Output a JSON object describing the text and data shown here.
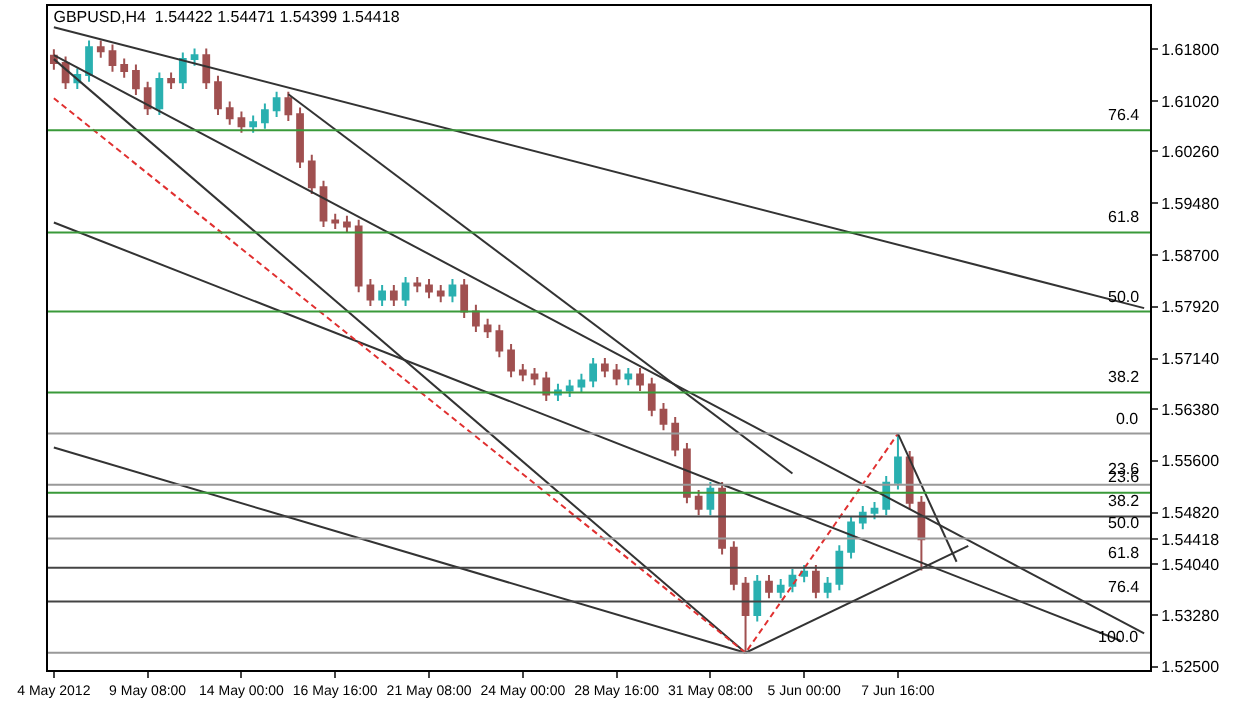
{
  "chart_data": {
    "type": "candlestick",
    "title": "GBPUSD,H4  1.54422 1.54471 1.54399 1.54418",
    "categories": [
      "4 May 2012",
      null,
      null,
      null,
      null,
      null,
      null,
      null,
      "9 May 08:00",
      null,
      null,
      null,
      null,
      null,
      null,
      null,
      "14 May 00:00",
      null,
      null,
      null,
      null,
      null,
      null,
      null,
      "16 May 16:00",
      null,
      null,
      null,
      null,
      null,
      null,
      null,
      "21 May 08:00",
      null,
      null,
      null,
      null,
      null,
      null,
      null,
      "24 May 00:00",
      null,
      null,
      null,
      null,
      null,
      null,
      null,
      "28 May 16:00",
      null,
      null,
      null,
      null,
      null,
      null,
      null,
      "31 May 08:00",
      null,
      null,
      null,
      null,
      null,
      null,
      null,
      "5 Jun 00:00",
      null,
      null,
      null,
      null,
      null,
      null,
      null,
      "7 Jun 16:00",
      null,
      null,
      null,
      null,
      null,
      null,
      null,
      null,
      null,
      null,
      null,
      null,
      null,
      null,
      null,
      null,
      null,
      null,
      null,
      null,
      null
    ],
    "ohlc": [
      [
        1.617,
        1.618,
        1.6149,
        1.6159
      ],
      [
        1.6159,
        1.6169,
        1.612,
        1.613
      ],
      [
        1.613,
        1.6151,
        1.612,
        1.6141
      ],
      [
        1.6141,
        1.6193,
        1.6131,
        1.6183
      ],
      [
        1.6183,
        1.6193,
        1.6167,
        1.6177
      ],
      [
        1.6177,
        1.6187,
        1.6146,
        1.6156
      ],
      [
        1.6156,
        1.6166,
        1.6137,
        1.6147
      ],
      [
        1.6147,
        1.6157,
        1.6111,
        1.6121
      ],
      [
        1.6121,
        1.6131,
        1.6081,
        1.6091
      ],
      [
        1.6091,
        1.6145,
        1.6081,
        1.6135
      ],
      [
        1.6135,
        1.6145,
        1.612,
        1.613
      ],
      [
        1.613,
        1.6175,
        1.612,
        1.6165
      ],
      [
        1.6165,
        1.6181,
        1.6155,
        1.6171
      ],
      [
        1.6171,
        1.6181,
        1.612,
        1.613
      ],
      [
        1.613,
        1.614,
        1.6081,
        1.6091
      ],
      [
        1.6091,
        1.6101,
        1.6066,
        1.6076
      ],
      [
        1.6076,
        1.6086,
        1.6054,
        1.6064
      ],
      [
        1.6064,
        1.608,
        1.6054,
        1.607
      ],
      [
        1.607,
        1.6098,
        1.606,
        1.6088
      ],
      [
        1.6088,
        1.6116,
        1.6078,
        1.6106
      ],
      [
        1.6106,
        1.6116,
        1.6072,
        1.6082
      ],
      [
        1.6082,
        1.6092,
        1.6001,
        1.6011
      ],
      [
        1.6011,
        1.6021,
        1.5962,
        1.5972
      ],
      [
        1.5972,
        1.5982,
        1.5912,
        1.5922
      ],
      [
        1.5922,
        1.5932,
        1.5909,
        1.5919
      ],
      [
        1.5919,
        1.5929,
        1.5903,
        1.5913
      ],
      [
        1.5913,
        1.5923,
        1.5814,
        1.5824
      ],
      [
        1.5824,
        1.5834,
        1.5793,
        1.5803
      ],
      [
        1.5803,
        1.5825,
        1.5793,
        1.5815
      ],
      [
        1.5815,
        1.5825,
        1.5793,
        1.5803
      ],
      [
        1.5803,
        1.5837,
        1.5793,
        1.5827
      ],
      [
        1.5827,
        1.5837,
        1.5814,
        1.5824
      ],
      [
        1.5824,
        1.5834,
        1.5805,
        1.5815
      ],
      [
        1.5815,
        1.5825,
        1.5799,
        1.5809
      ],
      [
        1.5809,
        1.5834,
        1.5799,
        1.5824
      ],
      [
        1.5824,
        1.5834,
        1.5775,
        1.5785
      ],
      [
        1.5785,
        1.5795,
        1.5754,
        1.5764
      ],
      [
        1.5764,
        1.5774,
        1.5745,
        1.5755
      ],
      [
        1.5755,
        1.5765,
        1.5716,
        1.5726
      ],
      [
        1.5726,
        1.5736,
        1.5686,
        1.5696
      ],
      [
        1.5696,
        1.5706,
        1.568,
        1.569
      ],
      [
        1.569,
        1.57,
        1.5674,
        1.5684
      ],
      [
        1.5684,
        1.5694,
        1.565,
        1.566
      ],
      [
        1.566,
        1.5676,
        1.565,
        1.5666
      ],
      [
        1.5666,
        1.5682,
        1.5656,
        1.5672
      ],
      [
        1.5672,
        1.5691,
        1.5662,
        1.5681
      ],
      [
        1.5681,
        1.5715,
        1.5671,
        1.5705
      ],
      [
        1.5705,
        1.5715,
        1.5686,
        1.5696
      ],
      [
        1.5696,
        1.5706,
        1.5674,
        1.5684
      ],
      [
        1.5684,
        1.57,
        1.5674,
        1.569
      ],
      [
        1.569,
        1.57,
        1.5665,
        1.5675
      ],
      [
        1.5675,
        1.5685,
        1.5627,
        1.5637
      ],
      [
        1.5637,
        1.5647,
        1.5606,
        1.5616
      ],
      [
        1.5616,
        1.5626,
        1.5567,
        1.5577
      ],
      [
        1.5577,
        1.5587,
        1.5496,
        1.5506
      ],
      [
        1.5506,
        1.5516,
        1.5478,
        1.5488
      ],
      [
        1.5488,
        1.5528,
        1.5478,
        1.5518
      ],
      [
        1.5518,
        1.5528,
        1.5419,
        1.5429
      ],
      [
        1.5429,
        1.5439,
        1.5365,
        1.5375
      ],
      [
        1.5375,
        1.5385,
        1.5271,
        1.5328
      ],
      [
        1.5328,
        1.5388,
        1.5318,
        1.5378
      ],
      [
        1.5378,
        1.5388,
        1.5353,
        1.5363
      ],
      [
        1.5363,
        1.5382,
        1.5353,
        1.5372
      ],
      [
        1.5372,
        1.5397,
        1.5362,
        1.5387
      ],
      [
        1.5387,
        1.5403,
        1.5377,
        1.5393
      ],
      [
        1.5393,
        1.5403,
        1.5353,
        1.5363
      ],
      [
        1.5363,
        1.5385,
        1.5353,
        1.5375
      ],
      [
        1.5375,
        1.5433,
        1.5365,
        1.5423
      ],
      [
        1.5423,
        1.5477,
        1.5413,
        1.5467
      ],
      [
        1.5467,
        1.5492,
        1.5457,
        1.5482
      ],
      [
        1.5482,
        1.5498,
        1.5472,
        1.5488
      ],
      [
        1.5488,
        1.5537,
        1.5478,
        1.5527
      ],
      [
        1.5527,
        1.5601,
        1.5517,
        1.5565
      ],
      [
        1.5565,
        1.5575,
        1.5487,
        1.5497
      ],
      [
        1.5497,
        1.5507,
        1.5395,
        1.5442
      ],
      null,
      null,
      null,
      null,
      null,
      null,
      null,
      null,
      null,
      null,
      null,
      null,
      null,
      null,
      null,
      null,
      null,
      null,
      null
    ],
    "colors": [
      "#a05050",
      "#a05050",
      "#2ab0b0",
      "#2ab0b0",
      "#a05050",
      "#a05050",
      "#a05050",
      "#a05050",
      "#a05050",
      "#2ab0b0",
      "#a05050",
      "#2ab0b0",
      "#2ab0b0",
      "#a05050",
      "#a05050",
      "#a05050",
      "#a05050",
      "#2ab0b0",
      "#2ab0b0",
      "#2ab0b0",
      "#a05050",
      "#a05050",
      "#a05050",
      "#a05050",
      "#a05050",
      "#a05050",
      "#a05050",
      "#a05050",
      "#2ab0b0",
      "#a05050",
      "#2ab0b0",
      "#a05050",
      "#a05050",
      "#a05050",
      "#2ab0b0",
      "#a05050",
      "#a05050",
      "#a05050",
      "#a05050",
      "#a05050",
      "#a05050",
      "#a05050",
      "#a05050",
      "#2ab0b0",
      "#2ab0b0",
      "#2ab0b0",
      "#2ab0b0",
      "#a05050",
      "#a05050",
      "#2ab0b0",
      "#a05050",
      "#a05050",
      "#a05050",
      "#a05050",
      "#a05050",
      "#a05050",
      "#2ab0b0",
      "#a05050",
      "#a05050",
      "#a05050",
      "#2ab0b0",
      "#a05050",
      "#2ab0b0",
      "#2ab0b0",
      "#2ab0b0",
      "#a05050",
      "#2ab0b0",
      "#2ab0b0",
      "#2ab0b0",
      "#2ab0b0",
      "#2ab0b0",
      "#2ab0b0",
      "#2ab0b0",
      "#a05050",
      "#a05050",
      null,
      null,
      null,
      null,
      null,
      null,
      null,
      null,
      null,
      null,
      null,
      null,
      null,
      null,
      null,
      null,
      null,
      null,
      null
    ],
    "series": [
      {
        "type": "line",
        "color": "#333333",
        "values": [
          1.6213,
          null,
          null,
          null,
          null,
          null,
          null,
          null,
          null,
          null,
          null,
          null,
          null,
          null,
          null,
          null,
          null,
          null,
          null,
          null,
          null,
          null,
          null,
          null,
          null,
          null,
          null,
          null,
          null,
          null,
          null,
          null,
          null,
          null,
          null,
          null,
          null,
          null,
          null,
          null,
          null,
          null,
          null,
          null,
          null,
          null,
          null,
          null,
          null,
          null,
          null,
          null,
          null,
          null,
          null,
          null,
          null,
          null,
          null,
          null,
          null,
          null,
          null,
          null,
          null,
          null,
          null,
          null,
          null,
          null,
          null,
          null,
          null,
          null,
          null,
          null,
          null,
          null,
          null,
          null,
          null,
          null,
          null,
          null,
          null,
          null,
          null,
          null,
          null,
          null,
          null,
          null,
          null,
          1.579
        ]
      },
      {
        "type": "line",
        "color": "#333333",
        "values": [
          1.6171,
          null,
          null,
          null,
          null,
          null,
          null,
          null,
          null,
          null,
          null,
          null,
          null,
          null,
          null,
          null,
          null,
          null,
          null,
          null,
          null,
          null,
          null,
          null,
          null,
          null,
          null,
          null,
          null,
          null,
          null,
          null,
          null,
          null,
          null,
          null,
          null,
          null,
          null,
          null,
          null,
          null,
          null,
          null,
          null,
          null,
          null,
          null,
          null,
          null,
          null,
          null,
          null,
          null,
          null,
          null,
          null,
          null,
          null,
          null,
          null,
          null,
          null,
          null,
          null,
          null,
          null,
          null,
          null,
          null,
          null,
          null,
          null,
          null,
          null,
          null,
          null,
          null,
          null,
          null,
          null,
          null,
          null,
          null,
          null,
          null,
          null,
          null,
          null,
          null,
          null,
          null,
          null,
          1.53
        ]
      },
      {
        "type": "line",
        "color": "#333333",
        "values": [
          1.6165,
          null,
          null,
          null,
          null,
          null,
          null,
          null,
          null,
          null,
          null,
          null,
          null,
          null,
          null,
          null,
          null,
          null,
          null,
          null,
          null,
          null,
          null,
          null,
          null,
          null,
          null,
          null,
          null,
          null,
          null,
          null,
          null,
          null,
          null,
          null,
          null,
          null,
          null,
          null,
          null,
          null,
          null,
          null,
          null,
          null,
          null,
          null,
          null,
          null,
          null,
          null,
          null,
          null,
          null,
          null,
          null,
          null,
          null,
          1.5271,
          null,
          null,
          null,
          null,
          null,
          null,
          null,
          null,
          null,
          null,
          null,
          null,
          null,
          null,
          null,
          null,
          null,
          null,
          null,
          null,
          null,
          null,
          null,
          null,
          null,
          null,
          null,
          null,
          null,
          null,
          null,
          null,
          null,
          null
        ]
      },
      {
        "type": "line",
        "color": "#333333",
        "values": [
          1.5919,
          null,
          null,
          null,
          null,
          null,
          null,
          null,
          null,
          null,
          null,
          null,
          null,
          null,
          null,
          null,
          null,
          null,
          null,
          null,
          null,
          null,
          null,
          null,
          null,
          null,
          null,
          null,
          null,
          null,
          null,
          null,
          null,
          null,
          null,
          null,
          null,
          null,
          null,
          null,
          null,
          null,
          null,
          null,
          null,
          null,
          null,
          null,
          null,
          null,
          null,
          null,
          null,
          null,
          null,
          null,
          null,
          null,
          null,
          null,
          null,
          null,
          null,
          null,
          null,
          null,
          null,
          null,
          null,
          null,
          null,
          null,
          null,
          null,
          null,
          null,
          null,
          null,
          null,
          null,
          null,
          null,
          null,
          null,
          null,
          null,
          null,
          null,
          null,
          null,
          null,
          1.5289,
          null,
          null
        ]
      },
      {
        "type": "line",
        "color": "#333333",
        "values": [
          1.558,
          null,
          null,
          null,
          null,
          null,
          null,
          null,
          null,
          null,
          null,
          null,
          null,
          null,
          null,
          null,
          null,
          null,
          null,
          null,
          null,
          null,
          null,
          null,
          null,
          null,
          null,
          null,
          null,
          null,
          null,
          null,
          null,
          null,
          null,
          null,
          null,
          null,
          null,
          null,
          null,
          null,
          null,
          null,
          null,
          null,
          null,
          null,
          null,
          null,
          null,
          null,
          null,
          null,
          null,
          null,
          null,
          null,
          null,
          1.5271,
          null,
          null,
          null,
          null,
          null,
          null,
          null,
          null,
          null,
          null,
          null,
          null,
          null,
          null,
          null,
          null,
          null,
          null,
          null,
          null,
          null,
          null,
          null,
          null,
          null,
          null,
          null,
          null,
          null,
          null,
          null,
          null,
          null,
          null
        ]
      },
      {
        "type": "line",
        "color": "#e03030",
        "line_style": "dashed",
        "values": [
          1.6106,
          null,
          null,
          null,
          null,
          null,
          null,
          null,
          null,
          null,
          null,
          null,
          null,
          null,
          null,
          null,
          null,
          null,
          null,
          null,
          null,
          null,
          null,
          null,
          null,
          null,
          null,
          null,
          null,
          null,
          null,
          null,
          null,
          null,
          null,
          null,
          null,
          null,
          null,
          null,
          null,
          null,
          null,
          null,
          null,
          null,
          null,
          null,
          null,
          null,
          null,
          null,
          null,
          null,
          null,
          null,
          null,
          null,
          null,
          1.5271,
          null,
          null,
          null,
          null,
          null,
          null,
          null,
          null,
          null,
          null,
          null,
          null,
          1.5601,
          null,
          null,
          null,
          null,
          null,
          null,
          null,
          null,
          null,
          null,
          null,
          null,
          null,
          null,
          null,
          null,
          null,
          null,
          null,
          null,
          null
        ]
      },
      {
        "type": "line",
        "color": "#333333",
        "values": [
          null,
          null,
          null,
          null,
          null,
          null,
          null,
          null,
          null,
          null,
          null,
          null,
          null,
          null,
          null,
          null,
          null,
          null,
          null,
          null,
          1.6112,
          null,
          null,
          null,
          null,
          null,
          null,
          null,
          null,
          null,
          null,
          null,
          null,
          null,
          null,
          null,
          null,
          null,
          null,
          null,
          null,
          null,
          null,
          null,
          null,
          null,
          null,
          null,
          null,
          null,
          null,
          null,
          null,
          null,
          null,
          null,
          null,
          null,
          null,
          null,
          null,
          null,
          null,
          1.5541,
          null,
          null,
          null,
          null,
          null,
          null,
          null,
          null,
          null,
          null,
          null,
          null,
          null,
          null,
          null,
          null,
          null,
          null,
          null,
          null,
          null,
          null,
          null,
          null,
          null,
          null,
          null,
          null,
          null,
          null
        ]
      },
      {
        "type": "line",
        "color": "#333333",
        "values": [
          null,
          null,
          null,
          null,
          null,
          null,
          null,
          null,
          null,
          null,
          null,
          null,
          null,
          null,
          null,
          null,
          null,
          null,
          null,
          null,
          null,
          null,
          null,
          null,
          null,
          null,
          null,
          null,
          null,
          null,
          null,
          null,
          null,
          null,
          null,
          null,
          null,
          null,
          null,
          null,
          null,
          null,
          null,
          null,
          null,
          null,
          null,
          null,
          null,
          null,
          null,
          null,
          null,
          null,
          null,
          null,
          null,
          null,
          null,
          1.5271,
          null,
          null,
          null,
          null,
          null,
          null,
          null,
          null,
          null,
          null,
          null,
          null,
          null,
          null,
          null,
          null,
          null,
          null,
          1.5432,
          null,
          null,
          null,
          null,
          null,
          null,
          null,
          null,
          null,
          null,
          null,
          null,
          null,
          null,
          null
        ]
      },
      {
        "type": "line",
        "color": "#333333",
        "values": [
          null,
          null,
          null,
          null,
          null,
          null,
          null,
          null,
          null,
          null,
          null,
          null,
          null,
          null,
          null,
          null,
          null,
          null,
          null,
          null,
          null,
          null,
          null,
          null,
          null,
          null,
          null,
          null,
          null,
          null,
          null,
          null,
          null,
          null,
          null,
          null,
          null,
          null,
          null,
          null,
          null,
          null,
          null,
          null,
          null,
          null,
          null,
          null,
          null,
          null,
          null,
          null,
          null,
          null,
          null,
          null,
          null,
          null,
          null,
          null,
          null,
          null,
          null,
          null,
          null,
          null,
          null,
          null,
          null,
          null,
          null,
          null,
          1.5601,
          null,
          null,
          null,
          null,
          1.5408,
          null,
          null,
          null,
          null,
          null,
          null,
          null,
          null,
          null,
          null,
          null,
          null,
          null,
          null,
          null,
          null
        ]
      }
    ],
    "ref_lines": [
      {
        "axis": "y",
        "value": 1.6058,
        "color": "#3a9a3a"
      },
      {
        "axis": "y",
        "value": 1.5904,
        "color": "#3a9a3a"
      },
      {
        "axis": "y",
        "value": 1.5785,
        "color": "#3a9a3a"
      },
      {
        "axis": "y",
        "value": 1.5663,
        "color": "#3a9a3a"
      },
      {
        "axis": "y",
        "value": 1.5512,
        "color": "#3a9a3a"
      },
      {
        "axis": "y",
        "value": 1.5601,
        "color": "#999999"
      },
      {
        "axis": "y",
        "value": 1.5524,
        "color": "#999999"
      },
      {
        "axis": "y",
        "value": 1.5476,
        "color": "#444444"
      },
      {
        "axis": "y",
        "value": 1.5443,
        "color": "#999999"
      },
      {
        "axis": "y",
        "value": 1.5399,
        "color": "#444444"
      },
      {
        "axis": "y",
        "value": 1.5348,
        "color": "#444444"
      },
      {
        "axis": "y",
        "value": 1.5271,
        "color": "#999999"
      }
    ],
    "annotations": [
      {
        "text": "76.4",
        "y": 1.6058
      },
      {
        "text": "61.8",
        "y": 1.5904
      },
      {
        "text": "50.0",
        "y": 1.5785
      },
      {
        "text": "38.2",
        "y": 1.5663
      },
      {
        "text": "23.6",
        "y": 1.5512
      },
      {
        "text": "0.0",
        "y": 1.5601
      },
      {
        "text": "23.6",
        "y": 1.5524
      },
      {
        "text": "38.2",
        "y": 1.5476
      },
      {
        "text": "50.0",
        "y": 1.5443
      },
      {
        "text": "61.8",
        "y": 1.5399
      },
      {
        "text": "76.4",
        "y": 1.5348
      },
      {
        "text": "100.0",
        "y": 1.5271
      }
    ],
    "ylim": [
      1.5245,
      1.6245
    ],
    "yticks": [
      {
        "value": 1.618,
        "label": "1.61800"
      },
      {
        "value": 1.6102,
        "label": "1.61020"
      },
      {
        "value": 1.6026,
        "label": "1.60260"
      },
      {
        "value": 1.5948,
        "label": "1.59480"
      },
      {
        "value": 1.587,
        "label": "1.58700"
      },
      {
        "value": 1.5792,
        "label": "1.57920"
      },
      {
        "value": 1.5714,
        "label": "1.57140"
      },
      {
        "value": 1.5638,
        "label": "1.56380"
      },
      {
        "value": 1.556,
        "label": "1.55600"
      },
      {
        "value": 1.5482,
        "label": "1.54820"
      },
      {
        "value": 1.54418,
        "label": "1.54418"
      },
      {
        "value": 1.5404,
        "label": "1.54040"
      },
      {
        "value": 1.5328,
        "label": "1.53280"
      },
      {
        "value": 1.525,
        "label": "1.52500"
      }
    ]
  }
}
